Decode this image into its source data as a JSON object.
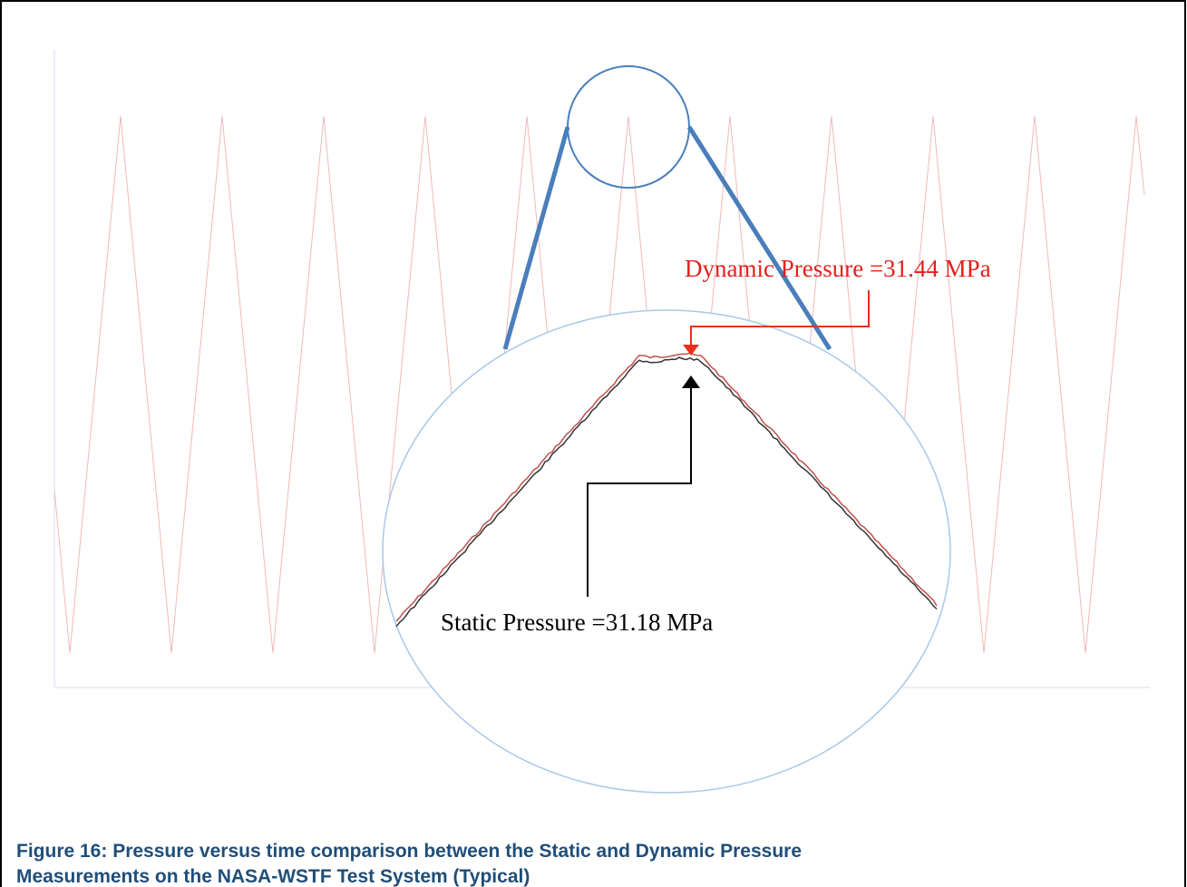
{
  "figure": {
    "annotations": {
      "dynamic": "Dynamic Pressure =31.44 MPa",
      "static": "Static Pressure =31.18 MPa"
    },
    "caption": [
      "Figure 16: Pressure versus time comparison between the Static and Dynamic Pressure",
      "Measurements on the NASA-WSTF Test System (Typical)"
    ]
  }
}
